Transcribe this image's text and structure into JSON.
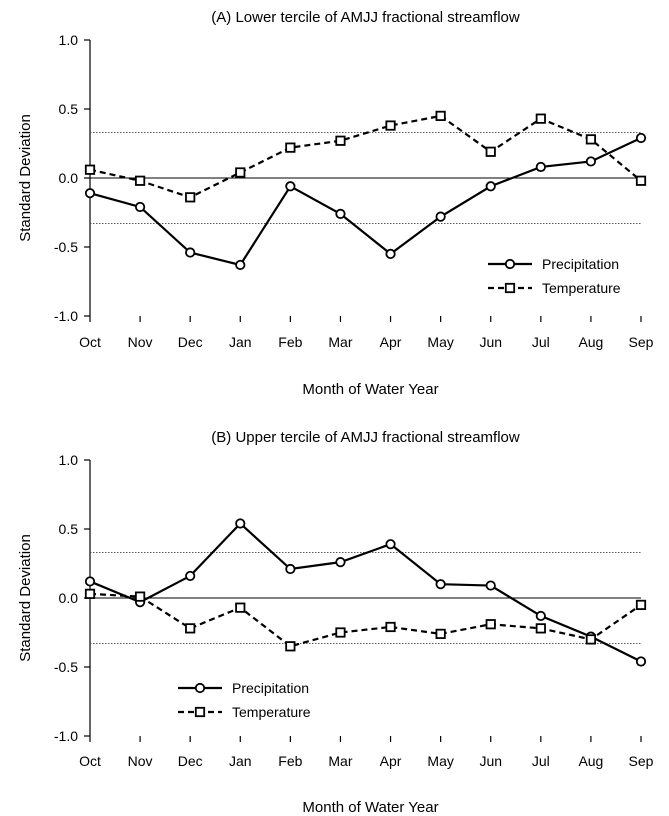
{
  "chart_data": [
    {
      "type": "line",
      "title": "(A) Lower tercile of AMJJ fractional streamflow",
      "xlabel": "Month of Water Year",
      "ylabel": "Standard Deviation",
      "categories": [
        "Oct",
        "Nov",
        "Dec",
        "Jan",
        "Feb",
        "Mar",
        "Apr",
        "May",
        "Jun",
        "Jul",
        "Aug",
        "Sep"
      ],
      "ylim": [
        -1.0,
        1.0
      ],
      "yticks": [
        "1.0",
        "0.5",
        "0.0",
        "-0.5",
        "-1.0"
      ],
      "reference_lines": [
        0.33,
        0.0,
        -0.33
      ],
      "legend_position": "lower-right",
      "series": [
        {
          "name": "Precipitation",
          "style": "solid",
          "marker": "circle",
          "values": [
            -0.11,
            -0.21,
            -0.54,
            -0.63,
            -0.06,
            -0.26,
            -0.55,
            -0.28,
            -0.06,
            0.08,
            0.12,
            0.29
          ]
        },
        {
          "name": "Temperature",
          "style": "dashed",
          "marker": "square",
          "values": [
            0.06,
            -0.02,
            -0.14,
            0.04,
            0.22,
            0.27,
            0.38,
            0.45,
            0.19,
            0.43,
            0.28,
            -0.02
          ]
        }
      ]
    },
    {
      "type": "line",
      "title": "(B) Upper tercile of AMJJ fractional streamflow",
      "xlabel": "Month of Water Year",
      "ylabel": "Standard Deviation",
      "categories": [
        "Oct",
        "Nov",
        "Dec",
        "Jan",
        "Feb",
        "Mar",
        "Apr",
        "May",
        "Jun",
        "Jul",
        "Aug",
        "Sep"
      ],
      "ylim": [
        -1.0,
        1.0
      ],
      "yticks": [
        "1.0",
        "0.5",
        "0.0",
        "-0.5",
        "-1.0"
      ],
      "reference_lines": [
        0.33,
        0.0,
        -0.33
      ],
      "legend_position": "lower-left",
      "series": [
        {
          "name": "Precipitation",
          "style": "solid",
          "marker": "circle",
          "values": [
            0.12,
            -0.03,
            0.16,
            0.54,
            0.21,
            0.26,
            0.39,
            0.1,
            0.09,
            -0.13,
            -0.28,
            -0.46
          ]
        },
        {
          "name": "Temperature",
          "style": "dashed",
          "marker": "square",
          "values": [
            0.03,
            0.01,
            -0.22,
            -0.07,
            -0.35,
            -0.25,
            -0.21,
            -0.26,
            -0.19,
            -0.22,
            -0.3,
            -0.05
          ]
        }
      ]
    }
  ]
}
